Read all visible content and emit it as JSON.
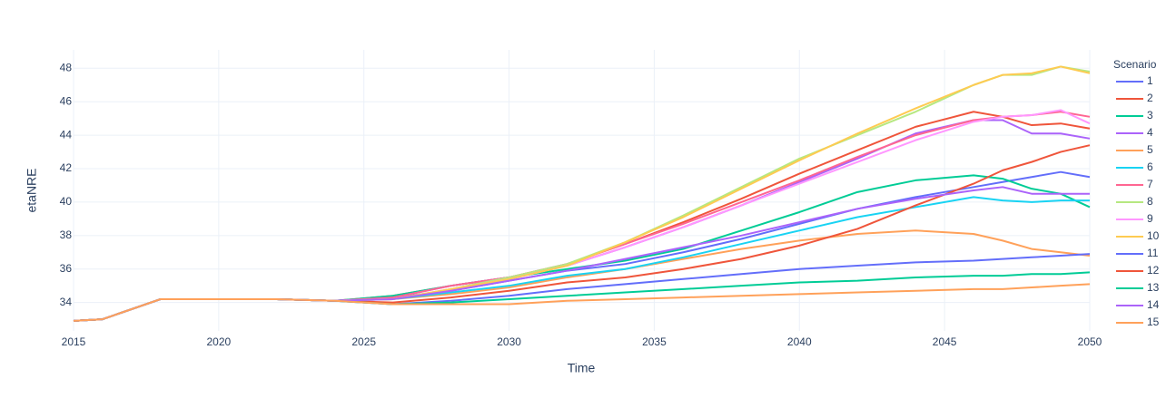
{
  "chart_data": {
    "type": "line",
    "x_label": "Time",
    "y_label": "etaNRE",
    "legend_title": "Scenario",
    "legend": "right",
    "grid": true,
    "x": [
      2015,
      2016,
      2018,
      2020,
      2022,
      2024,
      2026,
      2028,
      2030,
      2032,
      2034,
      2036,
      2038,
      2040,
      2042,
      2044,
      2046,
      2047,
      2048,
      2049,
      2050
    ],
    "xlim": [
      2015,
      2050
    ],
    "xticks": [
      2015,
      2020,
      2025,
      2030,
      2035,
      2040,
      2045,
      2050
    ],
    "ylim": [
      32.3,
      49.1
    ],
    "yticks": [
      34,
      36,
      38,
      40,
      42,
      44,
      46,
      48
    ],
    "series": [
      {
        "name": "1",
        "color": "#636efa",
        "values": [
          32.9,
          33.0,
          34.2,
          34.2,
          34.2,
          34.1,
          34.3,
          34.7,
          35.3,
          35.9,
          36.3,
          37.0,
          37.8,
          38.7,
          39.6,
          40.3,
          40.9,
          41.2,
          41.5,
          41.8,
          41.5
        ]
      },
      {
        "name": "2",
        "color": "#EF553B",
        "values": [
          32.9,
          33.0,
          34.2,
          34.2,
          34.2,
          34.1,
          34.4,
          35.0,
          35.5,
          36.3,
          37.5,
          38.8,
          40.2,
          41.7,
          43.1,
          44.5,
          45.4,
          45.1,
          44.6,
          44.7,
          44.4
        ]
      },
      {
        "name": "3",
        "color": "#00cc96",
        "values": [
          32.9,
          33.0,
          34.2,
          34.2,
          34.2,
          34.1,
          34.4,
          35.0,
          35.5,
          36.0,
          36.5,
          37.2,
          38.3,
          39.4,
          40.6,
          41.3,
          41.6,
          41.4,
          40.8,
          40.5,
          39.7
        ]
      },
      {
        "name": "4",
        "color": "#ab63fa",
        "values": [
          32.9,
          33.0,
          34.2,
          34.2,
          34.2,
          34.1,
          34.3,
          35.0,
          35.5,
          36.2,
          37.3,
          38.5,
          39.8,
          41.2,
          42.6,
          44.1,
          44.9,
          44.9,
          44.1,
          44.1,
          43.8
        ]
      },
      {
        "name": "5",
        "color": "#FFA15A",
        "values": [
          32.9,
          33.0,
          34.2,
          34.2,
          34.2,
          34.1,
          34.2,
          34.5,
          34.9,
          35.5,
          36.0,
          36.6,
          37.2,
          37.7,
          38.1,
          38.3,
          38.1,
          37.7,
          37.2,
          37.0,
          36.8
        ]
      },
      {
        "name": "6",
        "color": "#19d3f3",
        "values": [
          32.9,
          33.0,
          34.2,
          34.2,
          34.2,
          34.1,
          34.2,
          34.6,
          35.0,
          35.6,
          36.0,
          36.7,
          37.5,
          38.3,
          39.1,
          39.7,
          40.3,
          40.1,
          40.0,
          40.1,
          40.1
        ]
      },
      {
        "name": "7",
        "color": "#FF6692",
        "values": [
          32.9,
          33.0,
          34.2,
          34.2,
          34.2,
          34.1,
          34.3,
          35.0,
          35.5,
          36.3,
          37.5,
          38.7,
          40.0,
          41.3,
          42.7,
          44.0,
          44.9,
          45.1,
          45.2,
          45.4,
          45.1
        ]
      },
      {
        "name": "8",
        "color": "#B6E880",
        "values": [
          32.9,
          33.0,
          34.2,
          34.2,
          34.2,
          34.1,
          34.2,
          34.8,
          35.5,
          36.3,
          37.6,
          39.2,
          40.9,
          42.6,
          44.0,
          45.4,
          47.0,
          47.6,
          47.6,
          48.1,
          47.8
        ]
      },
      {
        "name": "9",
        "color": "#FF97FF",
        "values": [
          32.9,
          33.0,
          34.2,
          34.2,
          34.2,
          34.1,
          34.2,
          34.8,
          35.4,
          36.2,
          37.3,
          38.5,
          39.8,
          41.1,
          42.4,
          43.7,
          44.8,
          45.1,
          45.2,
          45.5,
          44.7
        ]
      },
      {
        "name": "10",
        "color": "#FECB52",
        "values": [
          32.9,
          33.0,
          34.2,
          34.2,
          34.2,
          34.1,
          34.2,
          34.8,
          35.4,
          36.2,
          37.6,
          39.1,
          40.8,
          42.5,
          44.1,
          45.6,
          47.0,
          47.6,
          47.7,
          48.1,
          47.7
        ]
      },
      {
        "name": "11",
        "color": "#636efa",
        "values": [
          32.9,
          33.0,
          34.2,
          34.2,
          34.2,
          34.1,
          33.9,
          34.1,
          34.4,
          34.8,
          35.1,
          35.4,
          35.7,
          36.0,
          36.2,
          36.4,
          36.5,
          36.6,
          36.7,
          36.8,
          36.9
        ]
      },
      {
        "name": "12",
        "color": "#EF553B",
        "values": [
          32.9,
          33.0,
          34.2,
          34.2,
          34.2,
          34.1,
          34.0,
          34.3,
          34.7,
          35.2,
          35.5,
          36.0,
          36.6,
          37.4,
          38.4,
          39.8,
          41.1,
          41.9,
          42.4,
          43.0,
          43.4
        ]
      },
      {
        "name": "13",
        "color": "#00cc96",
        "values": [
          32.9,
          33.0,
          34.2,
          34.2,
          34.2,
          34.1,
          33.9,
          34.0,
          34.2,
          34.4,
          34.6,
          34.8,
          35.0,
          35.2,
          35.3,
          35.5,
          35.6,
          35.6,
          35.7,
          35.7,
          35.8
        ]
      },
      {
        "name": "14",
        "color": "#ab63fa",
        "values": [
          32.9,
          33.0,
          34.2,
          34.2,
          34.2,
          34.1,
          34.2,
          34.7,
          35.3,
          35.9,
          36.6,
          37.3,
          38.0,
          38.8,
          39.6,
          40.2,
          40.7,
          40.9,
          40.5,
          40.5,
          40.5
        ]
      },
      {
        "name": "15",
        "color": "#FFA15A",
        "values": [
          32.9,
          33.0,
          34.2,
          34.2,
          34.2,
          34.1,
          33.9,
          33.9,
          33.9,
          34.1,
          34.2,
          34.3,
          34.4,
          34.5,
          34.6,
          34.7,
          34.8,
          34.8,
          34.9,
          35.0,
          35.1
        ]
      }
    ]
  }
}
